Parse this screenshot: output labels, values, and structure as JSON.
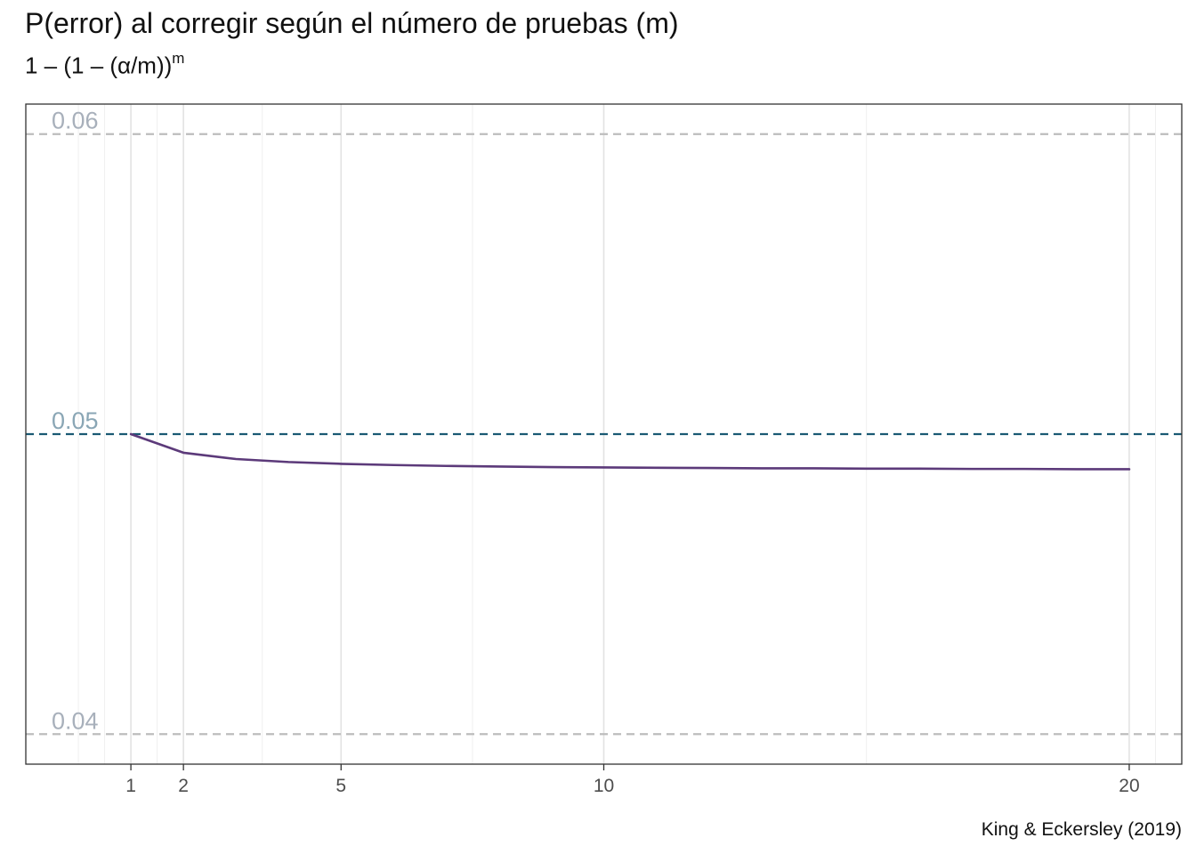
{
  "chart_data": {
    "type": "line",
    "title": "P(error) al corregir según el número de pruebas (m)",
    "subtitle": {
      "prefix": "1 – (1 – (α/m))",
      "superscript": "m"
    },
    "caption": "King & Eckersley (2019)",
    "xlabel": "",
    "ylabel": "",
    "xlim": [
      -1,
      21
    ],
    "ylim": [
      0.039,
      0.061
    ],
    "x_ticks": [
      1,
      2,
      5,
      10,
      20
    ],
    "x_minor_gridlines": [
      0,
      0.5,
      1.5,
      3.5,
      7.5,
      15,
      20.5
    ],
    "grid": true,
    "series": [
      {
        "color": "#5c3a7a",
        "x": [
          1,
          2,
          3,
          4,
          5,
          6,
          7,
          8,
          9,
          10,
          11,
          12,
          13,
          14,
          15,
          16,
          17,
          18,
          19,
          20
        ],
        "y": [
          0.05,
          0.04938,
          0.04917,
          0.04907,
          0.04901,
          0.04897,
          0.04894,
          0.04892,
          0.0489,
          0.04889,
          0.04888,
          0.04887,
          0.04886,
          0.04886,
          0.04885,
          0.04885,
          0.04884,
          0.04884,
          0.04883,
          0.04883
        ]
      }
    ],
    "reference_lines": [
      {
        "y": 0.06,
        "label": "0.06",
        "line_color": "#bdbdbd",
        "label_color": "#a8b0bb"
      },
      {
        "y": 0.05,
        "label": "0.05",
        "line_color": "#1a5a73",
        "label_color": "#8aa6b5"
      },
      {
        "y": 0.04,
        "label": "0.04",
        "line_color": "#bdbdbd",
        "label_color": "#a8b0bb"
      }
    ]
  }
}
